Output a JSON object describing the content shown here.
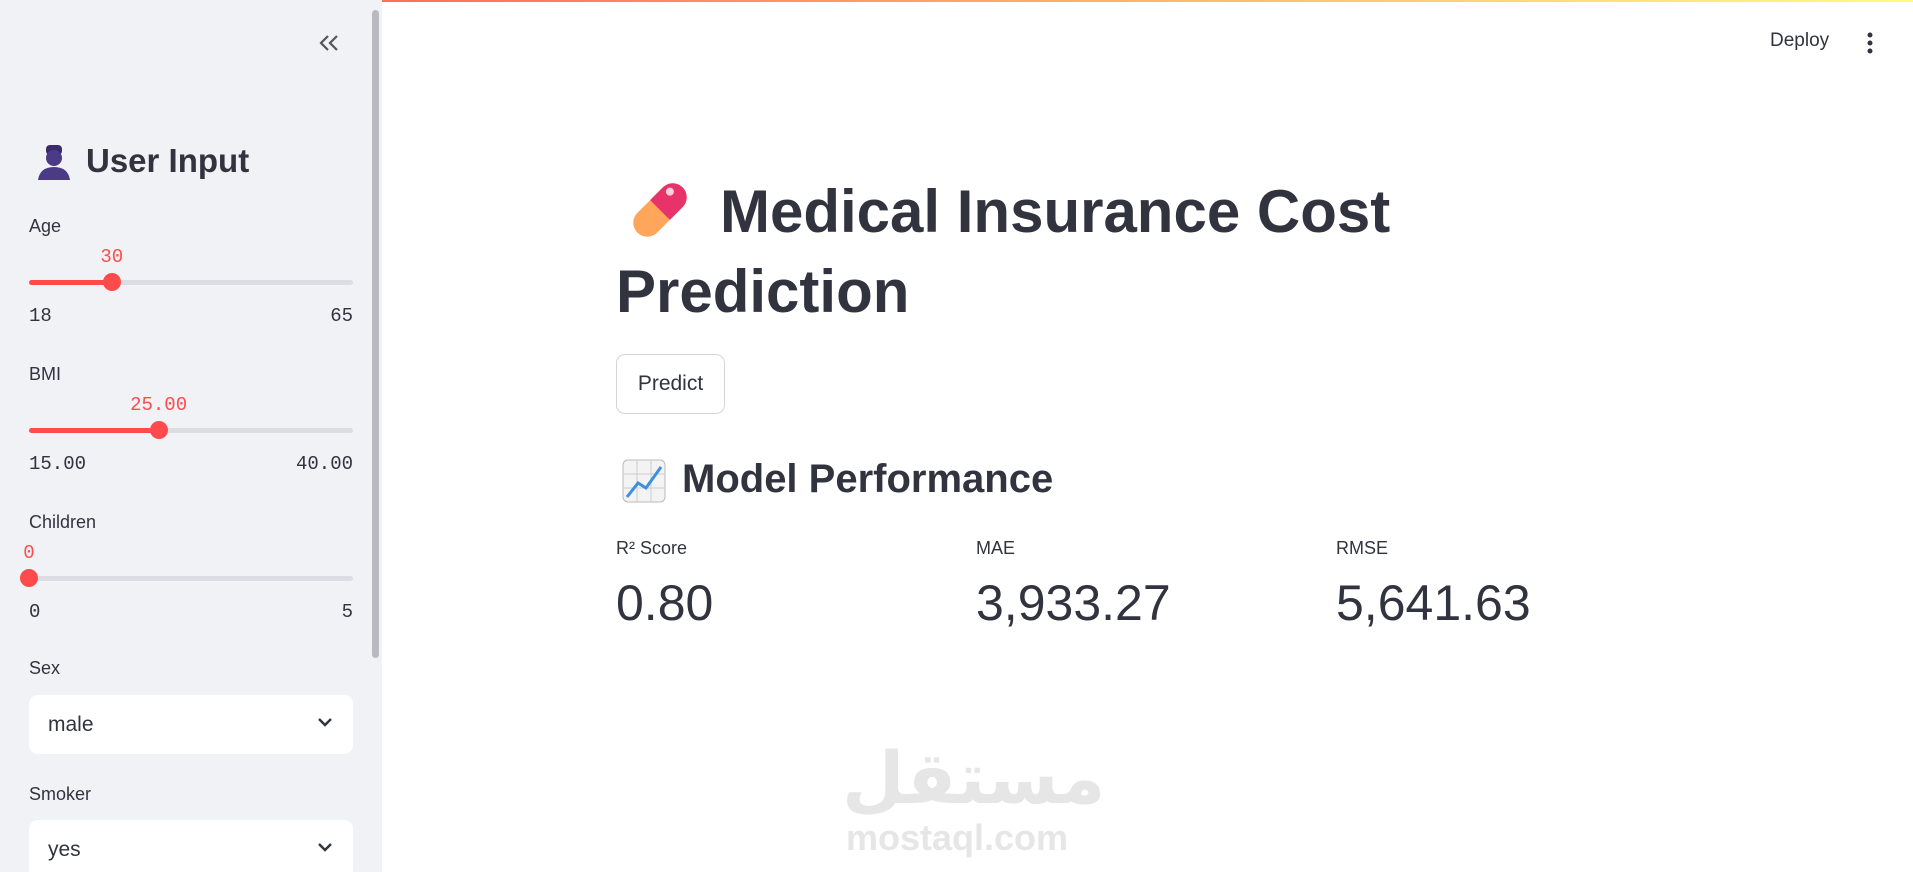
{
  "sidebar": {
    "title": "User Input",
    "sliders": [
      {
        "label": "Age",
        "value": "30",
        "min": "18",
        "max": "65"
      },
      {
        "label": "BMI",
        "value": "25.00",
        "min": "15.00",
        "max": "40.00"
      },
      {
        "label": "Children",
        "value": "0",
        "min": "0",
        "max": "5"
      }
    ],
    "selects": [
      {
        "label": "Sex",
        "value": "male"
      },
      {
        "label": "Smoker",
        "value": "yes"
      }
    ]
  },
  "header": {
    "deploy": "Deploy"
  },
  "main": {
    "title": "Medical Insurance Cost Prediction",
    "button": "Predict",
    "subheader": "Model Performance",
    "metrics": [
      {
        "label": "R² Score",
        "value": "0.80"
      },
      {
        "label": "MAE",
        "value": "3,933.27"
      },
      {
        "label": "RMSE",
        "value": "5,641.63"
      }
    ]
  },
  "watermark": {
    "arabic": "مستقل",
    "latin": "mostaql.com"
  }
}
